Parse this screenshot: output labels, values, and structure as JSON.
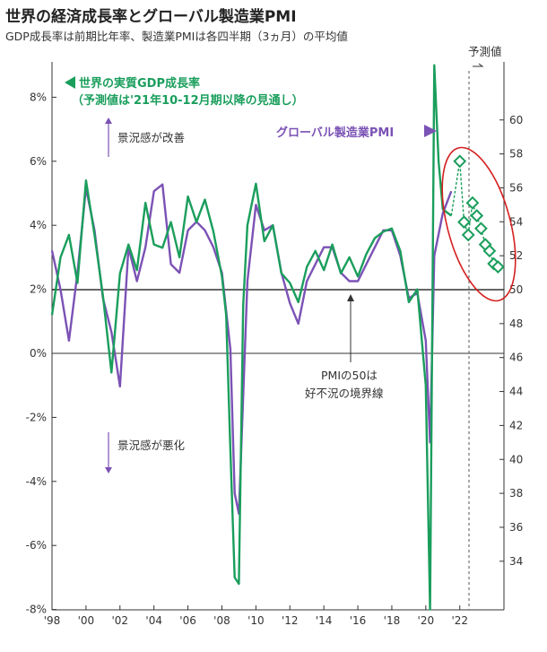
{
  "header": {
    "title": "世界の経済成長率とグローバル製造業PMI",
    "subtitle": "GDP成長率は前期比年率、製造業PMIは各四半期（3ヵ月）の平均値"
  },
  "colors": {
    "gdp": "#1a9e5c",
    "pmi": "#7b52b5",
    "highlight": "#d42020"
  },
  "chart_data": {
    "type": "line",
    "x_ticks": [
      "'98",
      "'00",
      "'02",
      "'04",
      "'06",
      "'08",
      "'10",
      "'12",
      "'14",
      "'16",
      "'18",
      "'20",
      "'22"
    ],
    "y_left_ticks": [
      "8%",
      "6%",
      "4%",
      "2%",
      "0%",
      "-2%",
      "-4%",
      "-6%",
      "-8%"
    ],
    "y_right_ticks": [
      "60",
      "58",
      "56",
      "54",
      "52",
      "50",
      "48",
      "46",
      "44",
      "42",
      "40",
      "38",
      "36",
      "34"
    ],
    "ylim_left": [
      -8,
      9
    ],
    "ylim_right": [
      34,
      61
    ],
    "xlim": [
      1998,
      2024.6
    ],
    "grid": false,
    "series": [
      {
        "name": "世界の実質GDP成長率",
        "axis": "left",
        "x": [
          1998,
          1998.5,
          1999,
          1999.5,
          2000,
          2000.5,
          2001,
          2001.5,
          2002,
          2002.5,
          2003,
          2003.5,
          2004,
          2004.5,
          2005,
          2005.5,
          2006,
          2006.5,
          2007,
          2007.5,
          2008,
          2008.25,
          2008.5,
          2008.75,
          2009,
          2009.25,
          2009.5,
          2010,
          2010.5,
          2011,
          2011.5,
          2012,
          2012.5,
          2013,
          2013.5,
          2014,
          2014.5,
          2015,
          2015.5,
          2016,
          2016.5,
          2017,
          2017.5,
          2018,
          2018.5,
          2019,
          2019.5,
          2020,
          2020.25,
          2020.5,
          2020.75,
          2021,
          2021.5
        ],
        "values": [
          1.2,
          3.0,
          3.7,
          2.2,
          5.4,
          3.7,
          1.8,
          -0.6,
          2.5,
          3.4,
          2.6,
          4.7,
          3.4,
          3.3,
          4.1,
          3.0,
          4.9,
          4.1,
          4.8,
          3.8,
          2.4,
          1.2,
          -3.0,
          -7.0,
          -7.2,
          1.5,
          4.0,
          5.3,
          3.5,
          4.0,
          2.5,
          2.2,
          1.6,
          2.7,
          3.2,
          2.6,
          3.4,
          2.5,
          3.0,
          2.4,
          3.1,
          3.6,
          3.8,
          3.9,
          3.2,
          1.6,
          2.0,
          -1.0,
          -8.0,
          9.0,
          6.0,
          4.5,
          4.3
        ]
      },
      {
        "name": "グローバル製造業PMI",
        "axis": "right",
        "x": [
          1998,
          1998.5,
          1999,
          1999.5,
          2000,
          2000.5,
          2001,
          2001.5,
          2002,
          2002.5,
          2003,
          2003.5,
          2004,
          2004.5,
          2005,
          2005.5,
          2006,
          2006.5,
          2007,
          2007.5,
          2008,
          2008.5,
          2008.75,
          2009,
          2009.5,
          2010,
          2010.5,
          2011,
          2011.5,
          2012,
          2012.5,
          2013,
          2013.5,
          2014,
          2014.5,
          2015,
          2015.5,
          2016,
          2016.5,
          2017,
          2017.5,
          2018,
          2018.5,
          2019,
          2019.5,
          2020,
          2020.25,
          2020.5,
          2021,
          2021.5
        ],
        "values": [
          52.3,
          50.0,
          47.0,
          51.0,
          56.0,
          53.5,
          49.5,
          47.5,
          44.3,
          52.5,
          50.5,
          52.5,
          55.8,
          56.2,
          51.5,
          51.0,
          53.5,
          54.0,
          53.5,
          52.5,
          51.0,
          46.5,
          38.0,
          36.8,
          50.5,
          55.0,
          53.5,
          53.8,
          51.0,
          49.2,
          48.0,
          50.5,
          51.5,
          52.5,
          52.5,
          51.0,
          50.5,
          50.5,
          51.5,
          52.5,
          53.5,
          53.5,
          52.0,
          49.5,
          49.8,
          47.0,
          41.0,
          52.0,
          54.5,
          55.8
        ]
      },
      {
        "name": "予測値",
        "axis": "left",
        "x": [
          2022.0,
          2022.25,
          2022.5,
          2022.75,
          2023.0,
          2023.25,
          2023.5,
          2023.75,
          2024.0,
          2024.25
        ],
        "values": [
          6.0,
          4.1,
          3.7,
          4.7,
          4.3,
          3.9,
          3.4,
          3.2,
          2.8,
          2.7
        ]
      }
    ],
    "annotations": [
      "世界の実質GDP成長率",
      "（予測値は'21年10-12月期以降の見通し）",
      "グローバル製造業PMI",
      "景況感が改善",
      "景況感が悪化",
      "PMIの50は",
      "好不況の境界線",
      "予測値"
    ]
  }
}
